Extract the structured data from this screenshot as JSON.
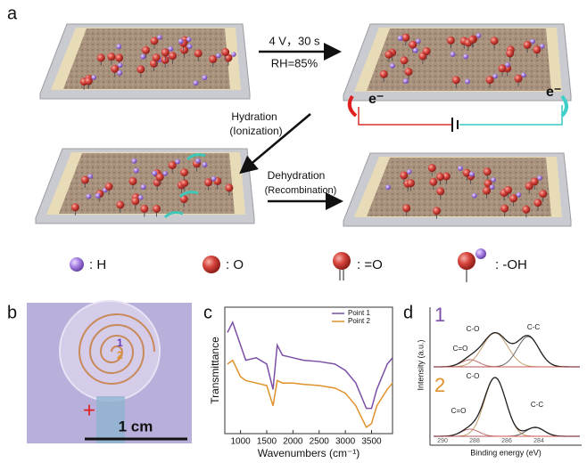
{
  "panel_a": {
    "label": "a",
    "step1": [
      "4 V，30 s",
      "RH=85%"
    ],
    "hydration": [
      "Hydration",
      "(Ionization)"
    ],
    "dehydration": [
      "Dehydration",
      "(Recombination)"
    ],
    "electron": "e⁻",
    "legend": [
      ": H",
      ": O",
      ": =O",
      ": -OH"
    ]
  },
  "panel_b": {
    "label": "b",
    "points": [
      "1",
      "2"
    ],
    "plus": "+",
    "scale": "1 cm"
  },
  "panel_c": {
    "label": "c"
  },
  "chart_data": {
    "type": "line",
    "x_label": "Wavenumbers (cm⁻¹)",
    "y_label": "Transmittance",
    "x": [
      750,
      850,
      1000,
      1100,
      1300,
      1500,
      1620,
      1700,
      1800,
      2000,
      2200,
      2500,
      2800,
      3000,
      3200,
      3400,
      3500,
      3600,
      3800,
      3900
    ],
    "series": [
      {
        "name": "Point 1",
        "color": "#7b4fa5",
        "values": [
          80,
          88,
          70,
          58,
          60,
          55,
          35,
          70,
          62,
          60,
          58,
          57,
          55,
          50,
          40,
          20,
          20,
          35,
          55,
          60
        ]
      },
      {
        "name": "Point 2",
        "color": "#e0922b",
        "values": [
          55,
          58,
          45,
          42,
          40,
          38,
          22,
          42,
          40,
          40,
          39,
          38,
          36,
          32,
          22,
          5,
          8,
          22,
          35,
          40
        ]
      }
    ],
    "xlim": [
      700,
      3900
    ],
    "ylim": [
      0,
      100
    ],
    "xticks": [
      1000,
      1500,
      2000,
      2500,
      3000,
      3500
    ]
  },
  "panel_d": {
    "label": "d",
    "spectra": [
      {
        "name": "1",
        "peaks": [
          "C-O",
          "C-C",
          "C=O"
        ]
      },
      {
        "name": "2",
        "peaks": [
          "C-O",
          "C-C",
          "C=O"
        ]
      }
    ],
    "y_label": "Intensity (a.u.)",
    "x_label": "Binding energy (eV)",
    "xticks": [
      "290",
      "288",
      "286",
      "284"
    ]
  }
}
